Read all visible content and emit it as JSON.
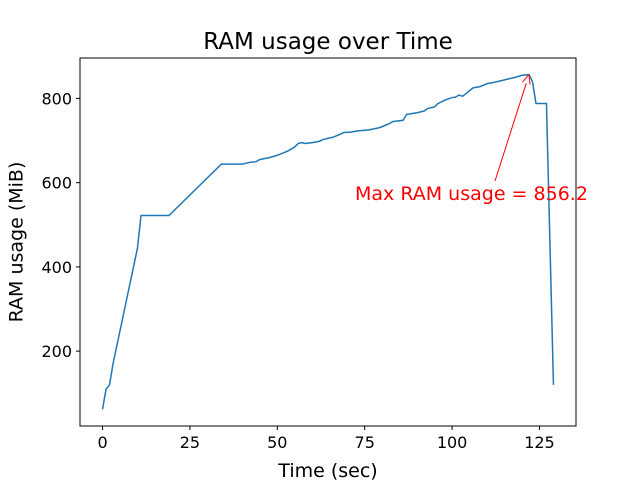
{
  "chart_data": {
    "type": "line",
    "title": "RAM usage over Time",
    "xlabel": "Time (sec)",
    "ylabel": "RAM usage (MiB)",
    "x": [
      0,
      1,
      2,
      3,
      10,
      11,
      19,
      34,
      40,
      42,
      44,
      45,
      48,
      50,
      53,
      55,
      56,
      57,
      58,
      60,
      62,
      63,
      66,
      68,
      69,
      71,
      73,
      76,
      79,
      80,
      82,
      83,
      86,
      87,
      90,
      92,
      93,
      95,
      96,
      98,
      100,
      101,
      102,
      103,
      106,
      108,
      110,
      112,
      114,
      116,
      118,
      120,
      122,
      123,
      124,
      126,
      127,
      129
    ],
    "values": [
      62,
      110,
      120,
      170,
      445,
      522,
      522,
      644,
      644,
      648,
      650,
      655,
      660,
      665,
      675,
      685,
      693,
      695,
      693,
      695,
      698,
      702,
      708,
      715,
      719,
      720,
      723,
      725,
      730,
      733,
      740,
      745,
      748,
      762,
      766,
      770,
      776,
      780,
      788,
      796,
      802,
      803,
      808,
      805,
      825,
      828,
      835,
      838,
      842,
      846,
      850,
      855,
      856.2,
      840,
      788,
      788,
      788,
      120
    ],
    "color": "#1f77b4",
    "xlim": [
      -6.45,
      135.45
    ],
    "ylim": [
      22.3,
      895.9
    ],
    "xticks": [
      0,
      25,
      50,
      75,
      100,
      125
    ],
    "yticks": [
      200,
      400,
      600,
      800
    ],
    "annotation": {
      "text": "Max RAM usage = 856.2",
      "color": "#ff0000"
    }
  }
}
